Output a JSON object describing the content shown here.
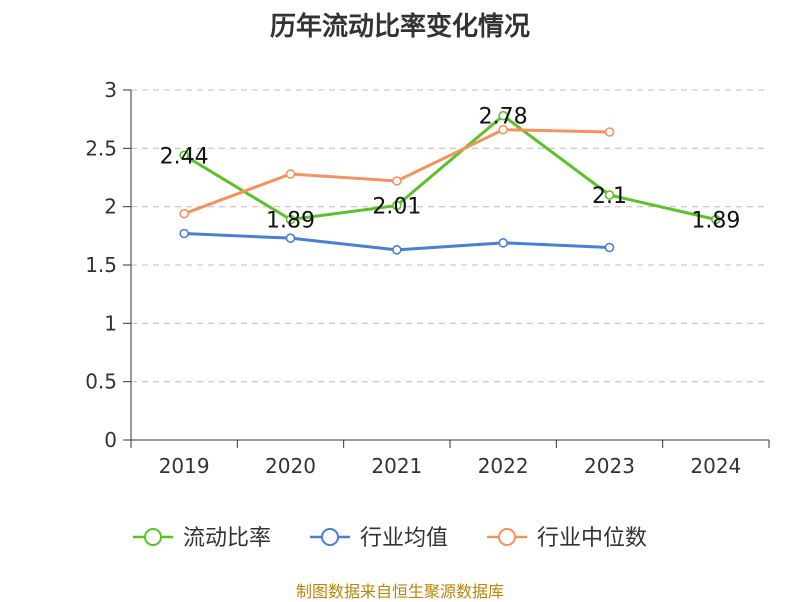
{
  "chart_data": {
    "type": "line",
    "title": "历年流动比率变化情况",
    "categories": [
      "2019",
      "2020",
      "2021",
      "2022",
      "2023",
      "2024"
    ],
    "ylim": [
      0,
      3
    ],
    "yticks": [
      "0",
      "0.5",
      "1",
      "1.5",
      "2",
      "2.5",
      "3"
    ],
    "grid": true,
    "legend_position": "bottom",
    "series": [
      {
        "name": "流动比率",
        "color": "#5cc12a",
        "labeled": true,
        "values": [
          2.44,
          1.89,
          2.01,
          2.78,
          2.1,
          1.89
        ],
        "labels": [
          "2.44",
          "1.89",
          "2.01",
          "2.78",
          "2.1",
          "1.89"
        ]
      },
      {
        "name": "行业均值",
        "color": "#4a7fd6",
        "labeled": false,
        "values": [
          1.77,
          1.73,
          1.63,
          1.69,
          1.65,
          null
        ]
      },
      {
        "name": "行业中位数",
        "color": "#f39361",
        "labeled": false,
        "values": [
          1.94,
          2.28,
          2.22,
          2.66,
          2.64,
          null
        ]
      }
    ]
  },
  "source": "制图数据来自恒生聚源数据库"
}
